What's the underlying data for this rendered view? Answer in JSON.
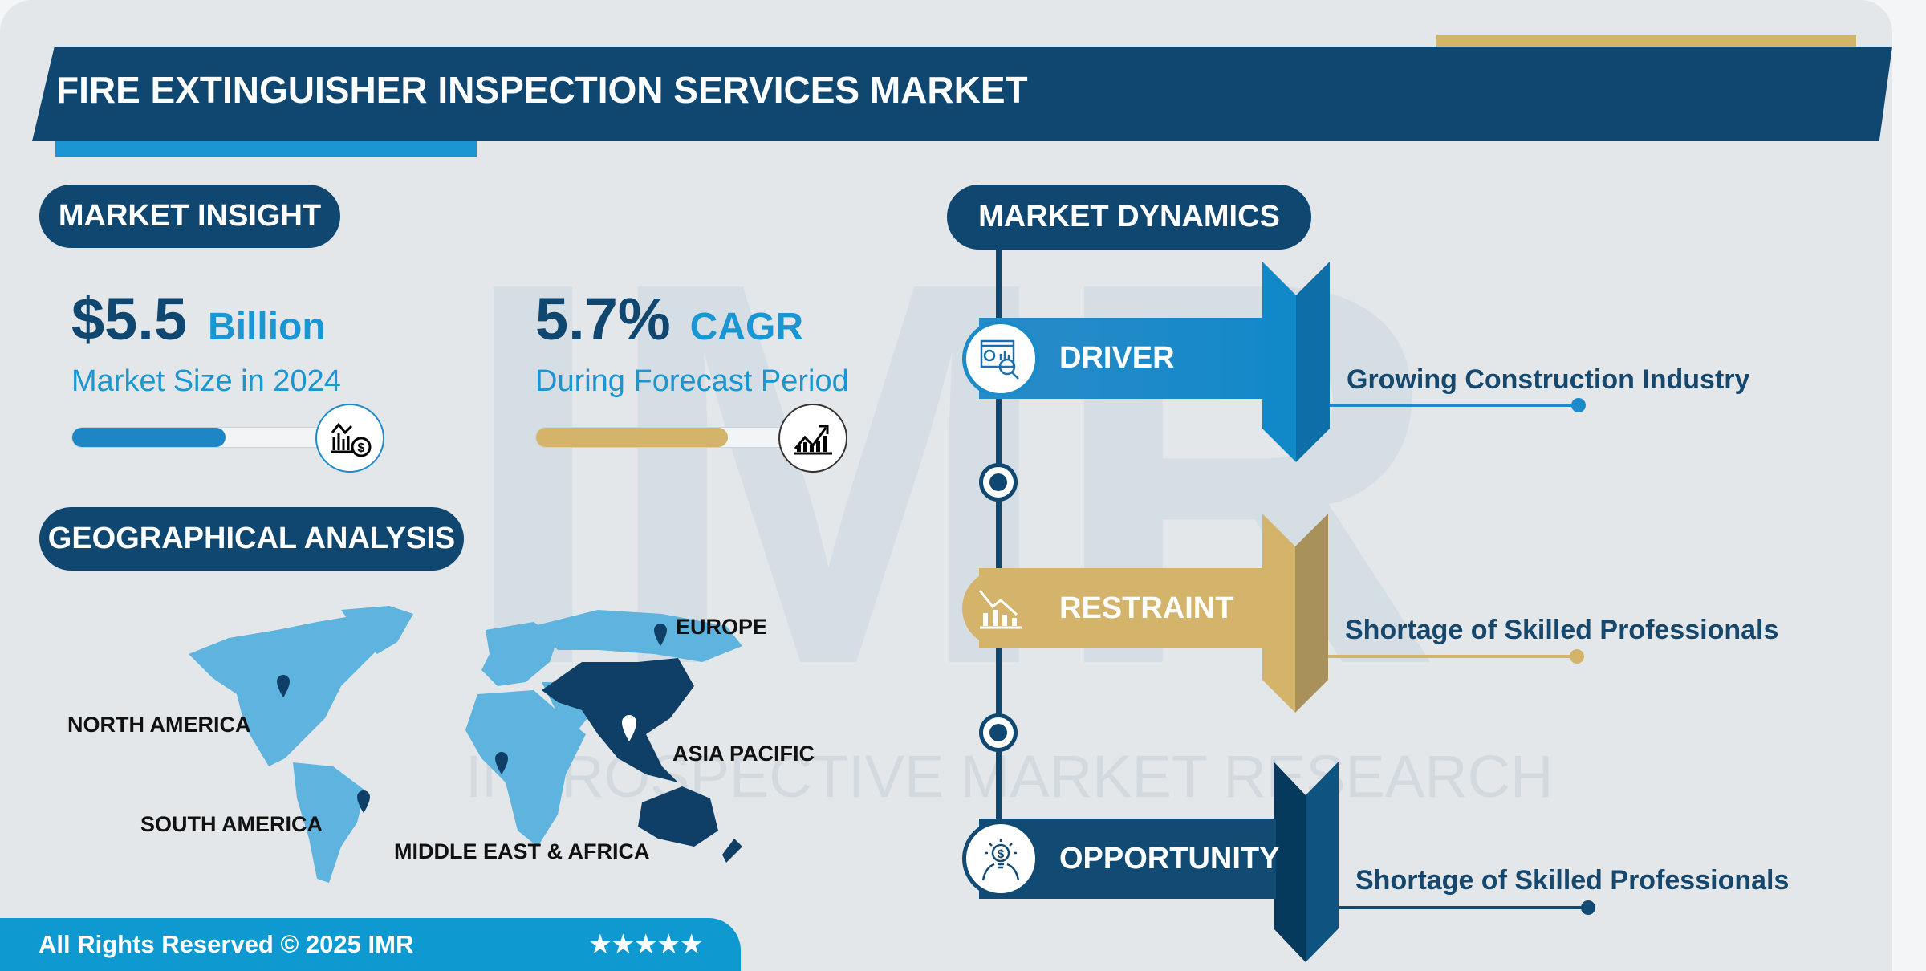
{
  "title": "FIRE EXTINGUISHER INSPECTION SERVICES MARKET",
  "watermark": {
    "letters": "IMR",
    "text": "INTROSPECTIVE MARKET RESEARCH"
  },
  "market_insight": {
    "heading": "MARKET INSIGHT",
    "size": {
      "value": "$5.5",
      "unit": "Billion",
      "label": "Market Size in 2024",
      "progress": 0.6,
      "icon": "chart-dollar-icon"
    },
    "cagr": {
      "value": "5.7%",
      "unit": "CAGR",
      "label": "During Forecast Period",
      "progress": 0.75,
      "icon": "growth-chart-icon"
    }
  },
  "geo": {
    "heading": "GEOGRAPHICAL ANALYSIS",
    "regions": [
      "NORTH AMERICA",
      "EUROPE",
      "ASIA PACIFIC",
      "SOUTH AMERICA",
      "MIDDLE EAST & AFRICA"
    ],
    "highlighted": "ASIA PACIFIC"
  },
  "dynamics": {
    "heading": "MARKET DYNAMICS",
    "items": [
      {
        "label": "DRIVER",
        "text": "Growing Construction Industry",
        "color": "#1b8bc9",
        "icon": "analytics-icon"
      },
      {
        "label": "RESTRAINT",
        "text": "Shortage of Skilled Professionals",
        "color": "#d4b46a",
        "icon": "declining-chart-icon"
      },
      {
        "label": "OPPORTUNITY",
        "text": "Shortage of Skilled Professionals",
        "color": "#114a73",
        "icon": "idea-dollar-icon"
      }
    ]
  },
  "footer": {
    "copyright": "All Rights Reserved © 2025 IMR",
    "stars": "★★★★★",
    "rating": 5
  },
  "colors": {
    "navy": "#0f4770",
    "blue": "#1b8bc9",
    "gold": "#d4b46a",
    "footer": "#0e9ad0"
  }
}
